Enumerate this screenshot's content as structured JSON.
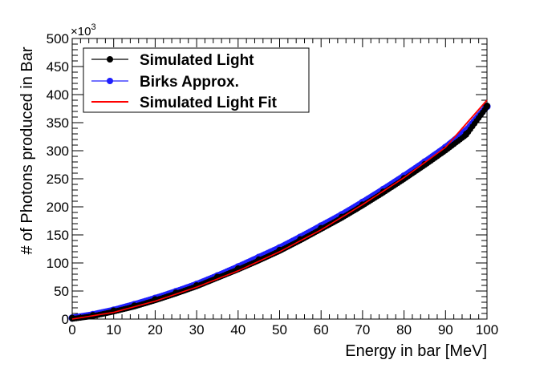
{
  "chart_data": {
    "type": "scatter",
    "title": "",
    "xlabel": "Energy in bar [MeV]",
    "ylabel": "# of Photons produced in Bar",
    "y_multiplier_label": "×10",
    "y_multiplier_exponent": "3",
    "xlim": [
      0,
      100
    ],
    "ylim": [
      0,
      500
    ],
    "xticks": [
      0,
      10,
      20,
      30,
      40,
      50,
      60,
      70,
      80,
      90,
      100
    ],
    "yticks": [
      0,
      50,
      100,
      150,
      200,
      250,
      300,
      350,
      400,
      450,
      500
    ],
    "grid": false,
    "legend_position": "top-left",
    "series": [
      {
        "name": "Simulated Light",
        "style": "markers",
        "color": "#000000",
        "x": [
          0,
          5,
          10,
          15,
          20,
          25,
          30,
          35,
          40,
          45,
          50,
          55,
          60,
          65,
          70,
          75,
          80,
          85,
          90,
          95,
          100
        ],
        "y": [
          2,
          7,
          15,
          24,
          35,
          47,
          60,
          75,
          90,
          106,
          123,
          142,
          162,
          182,
          204,
          227,
          251,
          276,
          302,
          330,
          380
        ]
      },
      {
        "name": "Birks Approx.",
        "style": "markers",
        "color": "#1f1fff",
        "x": [
          0,
          5,
          10,
          15,
          20,
          25,
          30,
          35,
          40,
          45,
          50,
          55,
          60,
          65,
          70,
          75,
          80,
          85,
          90,
          95,
          100
        ],
        "y": [
          2,
          8,
          16,
          26,
          37,
          49,
          62,
          77,
          93,
          110,
          127,
          146,
          166,
          186,
          208,
          231,
          255,
          280,
          306,
          336,
          379
        ]
      },
      {
        "name": "Simulated Light Fit",
        "style": "line",
        "color": "#ff0000",
        "x": [
          0,
          10,
          20,
          30,
          40,
          50,
          60,
          70,
          80,
          90,
          100
        ],
        "y": [
          0,
          12,
          32,
          57,
          86,
          120,
          159,
          204,
          252,
          306,
          390
        ]
      }
    ]
  }
}
